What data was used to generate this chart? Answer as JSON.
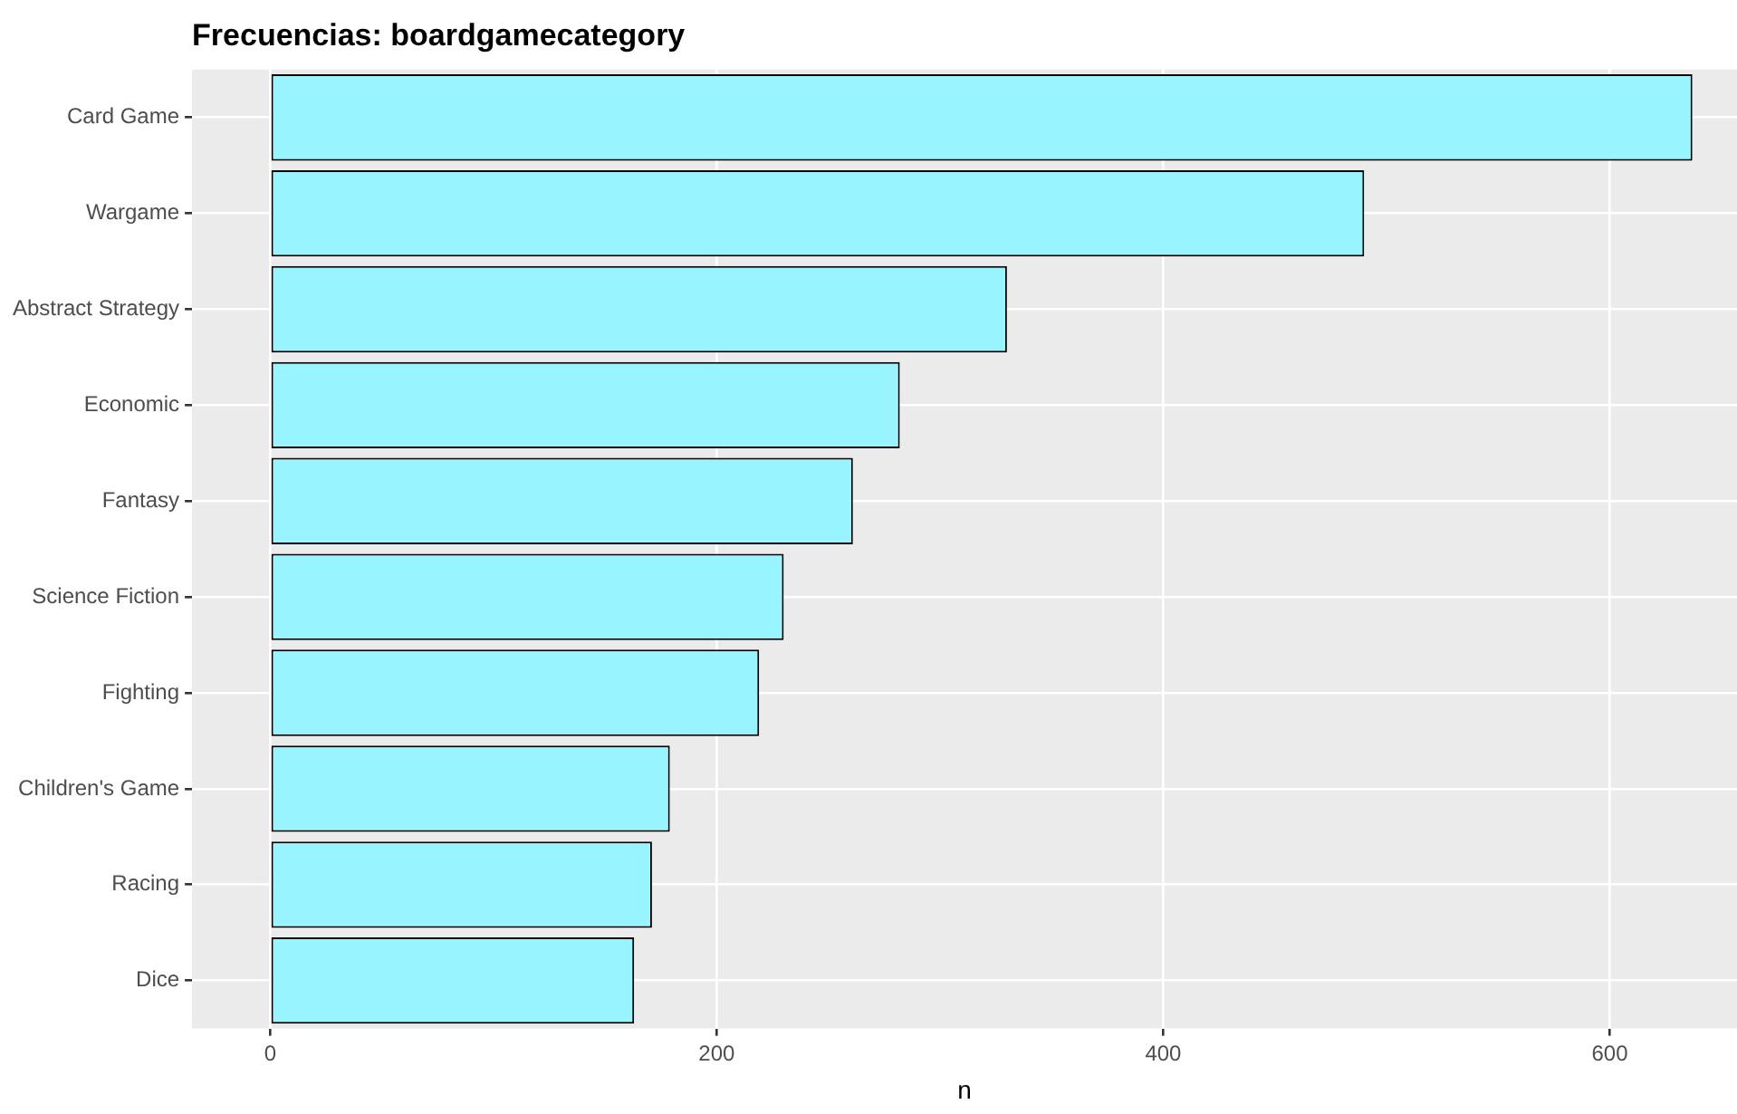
{
  "chart_data": {
    "type": "bar",
    "orientation": "horizontal",
    "title": "Frecuencias: boardgamecategory",
    "xlabel": "n",
    "categories": [
      "Card Game",
      "Wargame",
      "Abstract Strategy",
      "Economic",
      "Fantasy",
      "Science Fiction",
      "Fighting",
      "Children's Game",
      "Racing",
      "Dice"
    ],
    "values": [
      637,
      490,
      330,
      282,
      261,
      230,
      219,
      179,
      171,
      163
    ],
    "color": "#98f5ff",
    "xlim": [
      -35,
      657
    ],
    "xticks": [
      0,
      200,
      400,
      600
    ],
    "grid": true,
    "legend": false
  }
}
